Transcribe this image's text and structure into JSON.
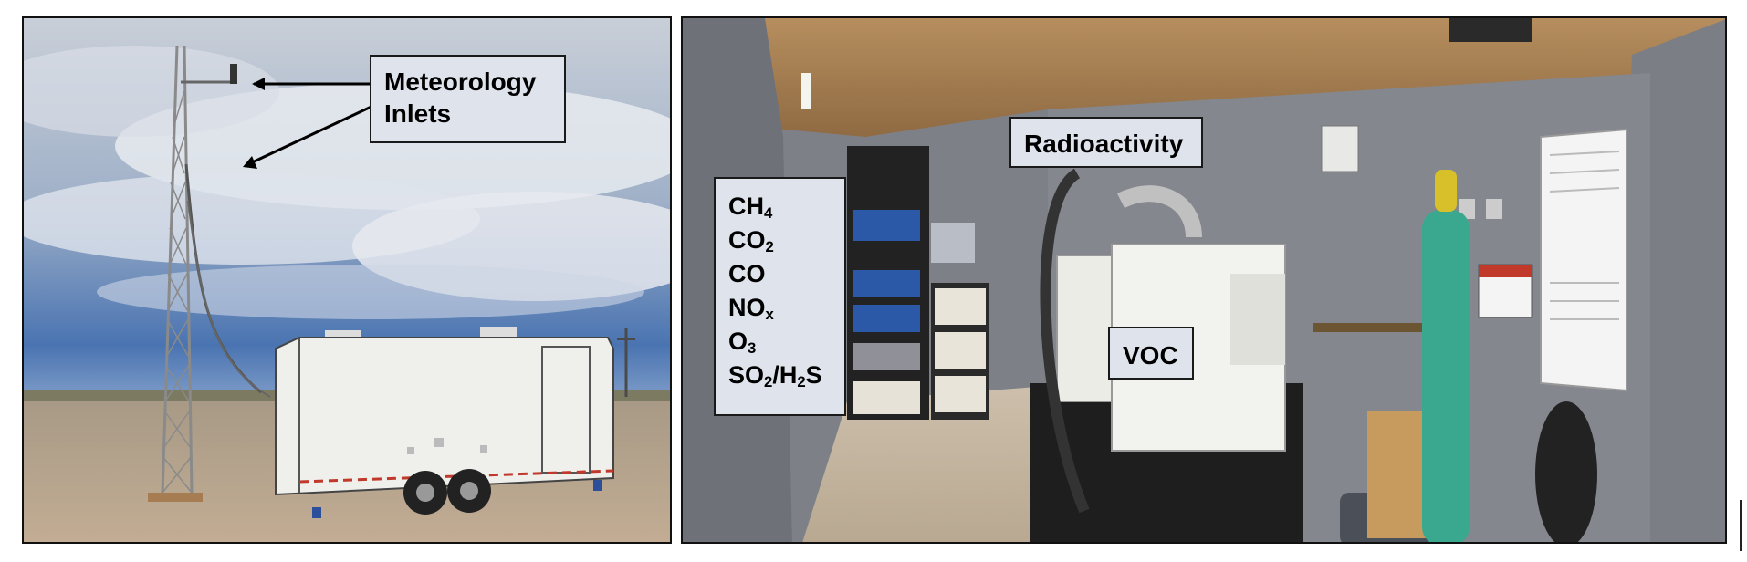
{
  "photos": {
    "left": {
      "subject": "outdoor tower and trailer"
    },
    "right": {
      "subject": "trailer interior instruments"
    }
  },
  "labels": {
    "meteorology": {
      "line1": "Meteorology",
      "line2": "Inlets"
    },
    "radioactivity": "Radioactivity",
    "voc": "VOC",
    "species": [
      {
        "base": "CH",
        "sub": "4",
        "tail": ""
      },
      {
        "base": "CO",
        "sub": "2",
        "tail": ""
      },
      {
        "base": "CO",
        "sub": "",
        "tail": ""
      },
      {
        "base": "NO",
        "sub": "x",
        "tail": ""
      },
      {
        "base": "O",
        "sub": "3",
        "tail": ""
      },
      {
        "base": "SO",
        "sub": "2",
        "tail": "/H",
        "sub2": "2",
        "tail2": "S"
      }
    ]
  },
  "colors": {
    "label_fill": "#dfe3ec",
    "sky_top": "#3f6aa8",
    "ground": "#b9a58f",
    "trailer": "#eeeeec",
    "cylinder": "#3aa88f"
  }
}
